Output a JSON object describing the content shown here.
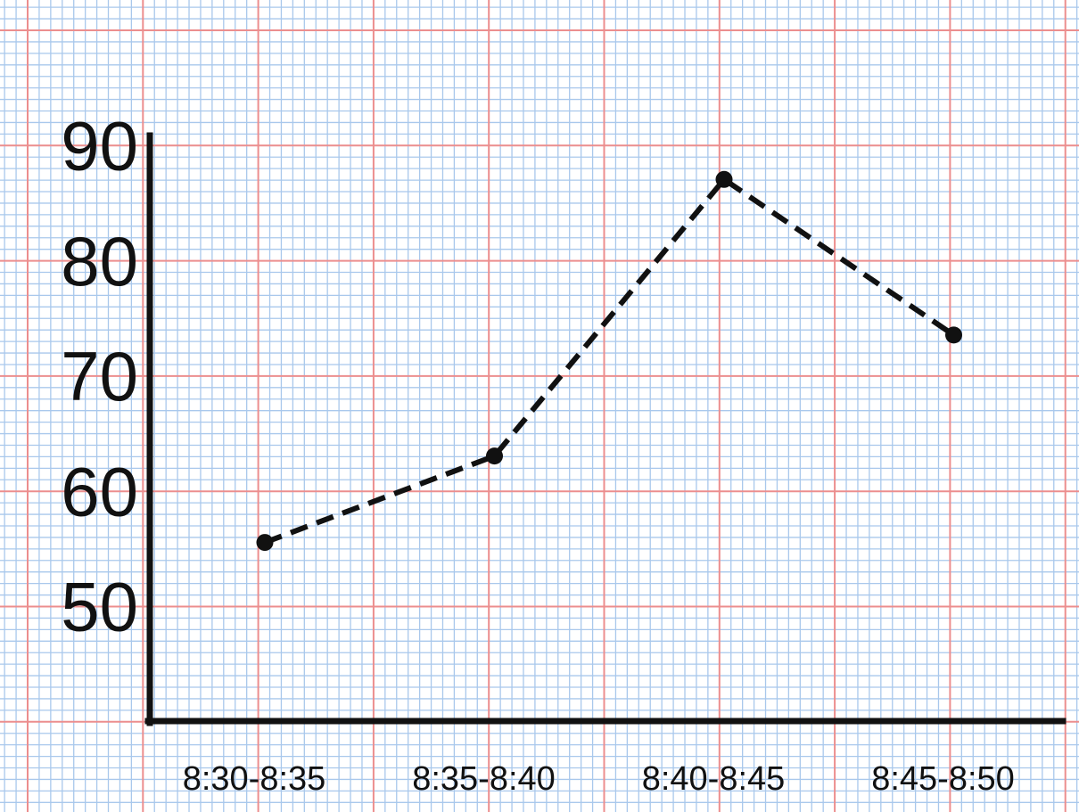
{
  "chart_data": {
    "type": "line",
    "categories": [
      "8:30-8:35",
      "8:35-8:40",
      "8:40-8:45",
      "8:45-8:50"
    ],
    "series": [
      {
        "values": [
          55.5,
          63,
          87,
          73.5
        ]
      }
    ],
    "y_ticks": [
      "50",
      "60",
      "70",
      "80",
      "90"
    ],
    "ylim": [
      40,
      91
    ],
    "grid": true,
    "line_style": "dashed",
    "colors": {
      "minor_grid": "#a9c8ec",
      "major_grid": "#ec8e8e",
      "axis": "#111111",
      "line": "#111111",
      "background": "#ffffff"
    }
  }
}
